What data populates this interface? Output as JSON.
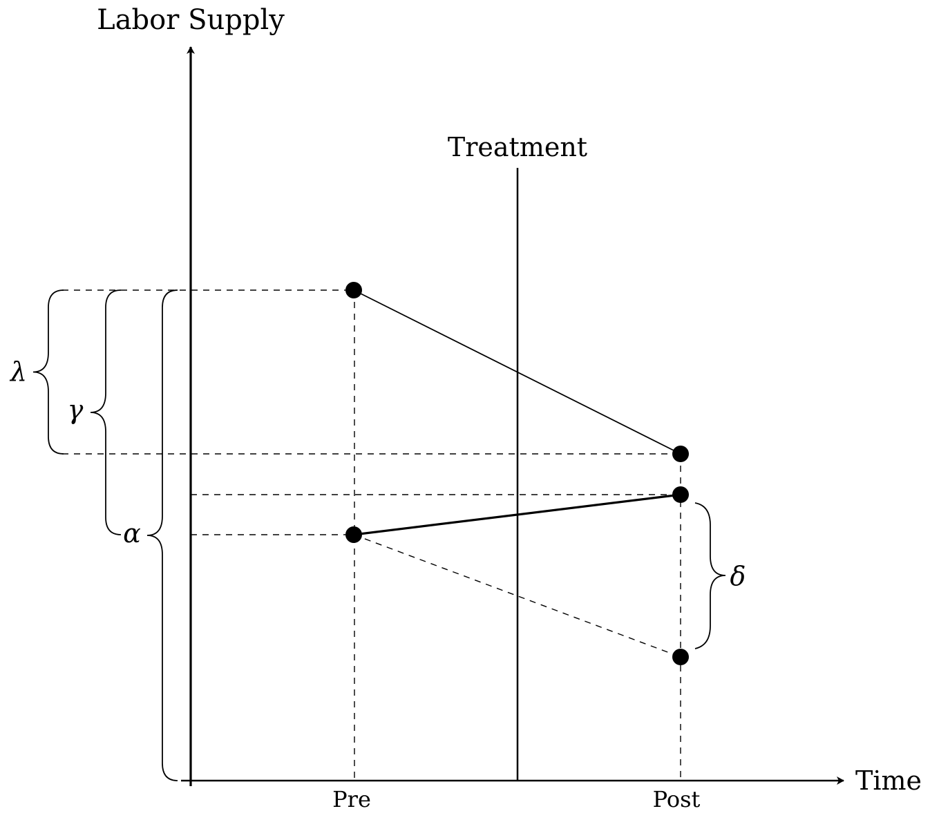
{
  "axes": {
    "y_label": "Labor Supply",
    "x_label": "Time"
  },
  "ticks": {
    "pre": "Pre",
    "post": "Post"
  },
  "treatment": {
    "label": "Treatment"
  },
  "braces": {
    "lambda": "λ",
    "gamma": "γ",
    "alpha": "α",
    "delta": "δ"
  }
}
